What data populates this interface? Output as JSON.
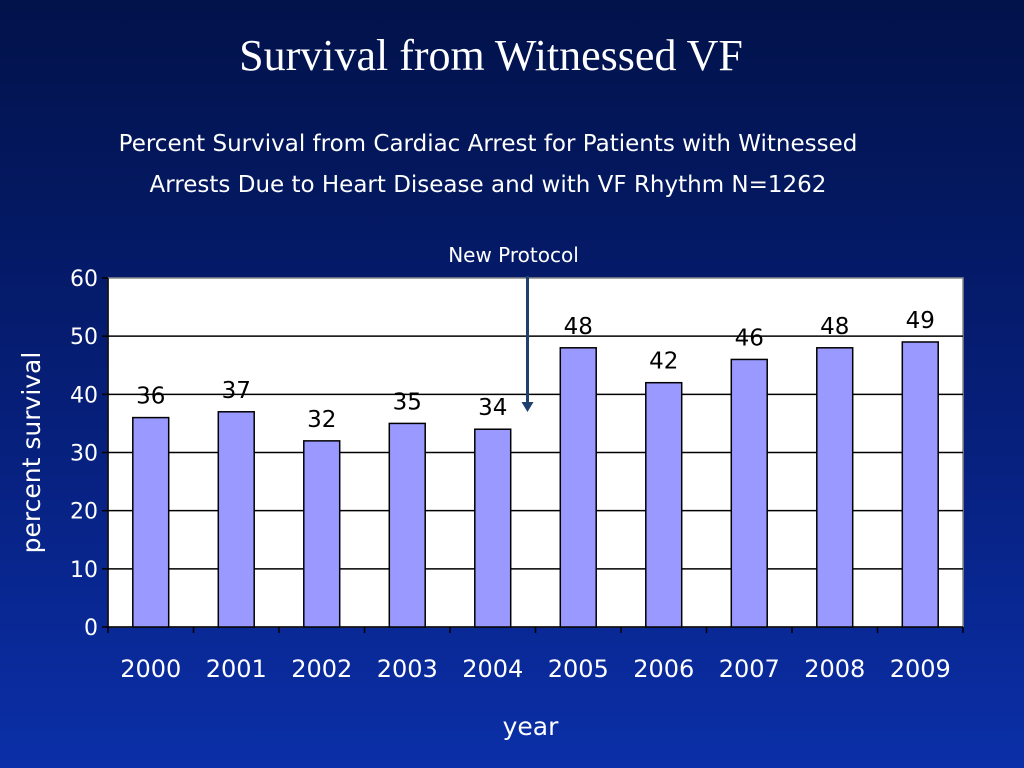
{
  "slide": {
    "title": "Survival from Witnessed VF"
  },
  "chart_data": {
    "type": "bar",
    "title_lines": [
      "Percent Survival from Cardiac Arrest for Patients with Witnessed",
      "Arrests  Due to Heart Disease and with VF Rhythm  N=1262"
    ],
    "categories": [
      "2000",
      "2001",
      "2002",
      "2003",
      "2004",
      "2005",
      "2006",
      "2007",
      "2008",
      "2009"
    ],
    "values": [
      36,
      37,
      32,
      35,
      34,
      48,
      42,
      46,
      48,
      49
    ],
    "xlabel": "year",
    "ylabel": "percent survival",
    "ylim": [
      0,
      60
    ],
    "yticks": [
      0,
      10,
      20,
      30,
      40,
      50,
      60
    ],
    "grid": true,
    "bar_color": "#9999ff",
    "annotation": {
      "text": "New Protocol",
      "position": "between 2004 and 2005"
    }
  }
}
